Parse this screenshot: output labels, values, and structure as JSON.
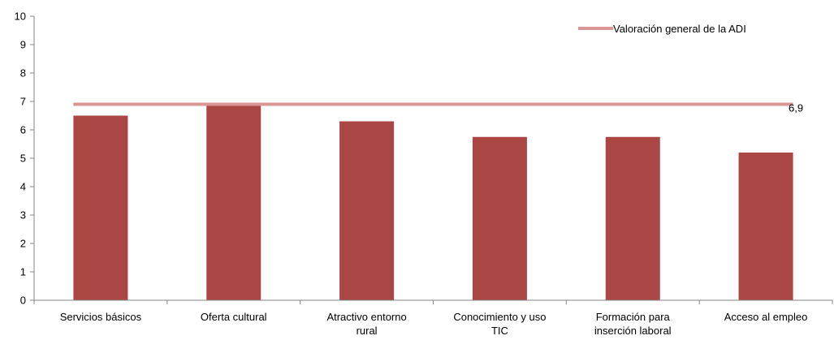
{
  "chart_data": {
    "type": "bar",
    "categories": [
      [
        "Servicios básicos"
      ],
      [
        "Oferta cultural"
      ],
      [
        "Atractivo entorno",
        "rural"
      ],
      [
        "Conocimiento y uso",
        "TIC"
      ],
      [
        "Formación para",
        "inserción laboral"
      ],
      [
        "Acceso al empleo"
      ]
    ],
    "values": [
      6.5,
      6.85,
      6.3,
      5.75,
      5.75,
      5.2
    ],
    "ylim": [
      0,
      10
    ],
    "yticks": [
      "0",
      "1",
      "2",
      "3",
      "4",
      "5",
      "6",
      "7",
      "8",
      "9",
      "10"
    ],
    "bar_color": "#aa4643",
    "reference_line": {
      "name": "Valoración general de la ADI",
      "value": 6.9,
      "label": "6,9",
      "color": "#d99694"
    },
    "legend": "top-right",
    "grid": false
  }
}
